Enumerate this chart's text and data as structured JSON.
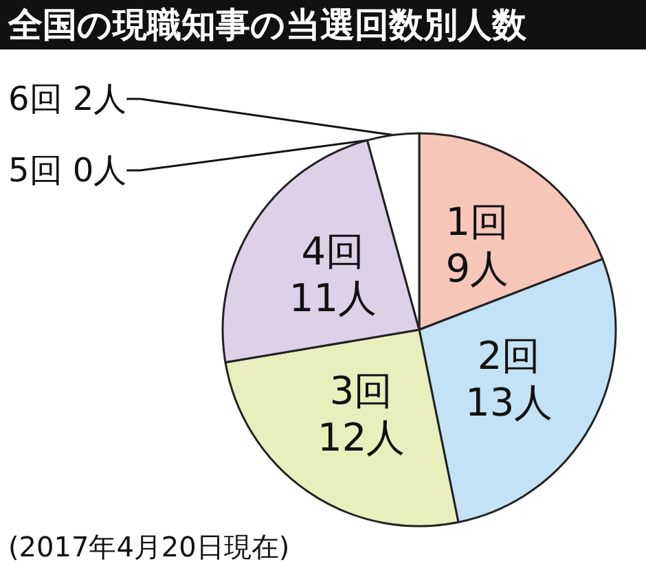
{
  "chart_data": {
    "type": "pie",
    "title": "全国の現職知事の当選回数別人数",
    "categories": [
      "1回",
      "2回",
      "3回",
      "4回",
      "5回",
      "6回"
    ],
    "values": [
      9,
      13,
      12,
      11,
      0,
      2
    ],
    "value_labels": [
      "9人",
      "13人",
      "12人",
      "11人",
      "0人",
      "2人"
    ],
    "colors": [
      "#f6c6b8",
      "#c3e2f6",
      "#e8efbc",
      "#ddd1e8",
      "#ffffff",
      "#ffffff"
    ],
    "annotations": [
      "(2017年4月20日現在)"
    ],
    "legend": false
  }
}
